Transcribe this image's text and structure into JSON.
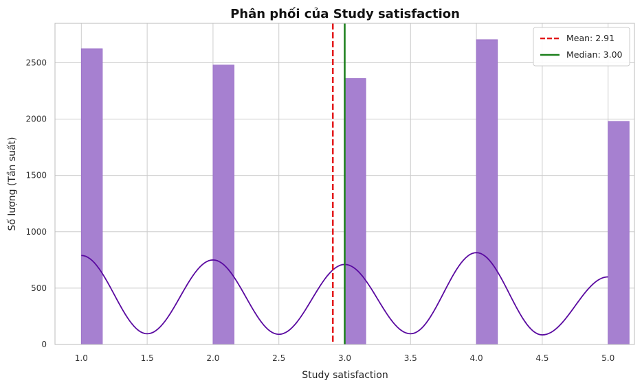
{
  "chart_data": {
    "type": "bar",
    "title": "Phân phối của Study satisfaction",
    "xlabel": "Study satisfaction",
    "ylabel": "Số lượng (Tần suất)",
    "xlim": [
      0.8,
      5.2
    ],
    "ylim": [
      0,
      2850
    ],
    "xticks": [
      1.0,
      1.5,
      2.0,
      2.5,
      3.0,
      3.5,
      4.0,
      4.5,
      5.0
    ],
    "xtick_labels": [
      "1.0",
      "1.5",
      "2.0",
      "2.5",
      "3.0",
      "3.5",
      "4.0",
      "4.5",
      "5.0"
    ],
    "yticks": [
      0,
      500,
      1000,
      1500,
      2000,
      2500
    ],
    "ytick_labels": [
      "0",
      "500",
      "1000",
      "1500",
      "2000",
      "2500"
    ],
    "bar_width": 0.16,
    "bars": [
      {
        "x": 1.0,
        "value": 2625
      },
      {
        "x": 2.0,
        "value": 2480
      },
      {
        "x": 3.0,
        "value": 2360
      },
      {
        "x": 4.0,
        "value": 2705
      },
      {
        "x": 5.0,
        "value": 1980
      }
    ],
    "kde": {
      "x": [
        1.0,
        1.5,
        2.0,
        2.5,
        3.0,
        3.5,
        4.0,
        4.5,
        5.0
      ],
      "y": [
        790,
        95,
        750,
        90,
        710,
        95,
        815,
        85,
        600
      ]
    },
    "mean": 2.91,
    "median": 3.0,
    "legend": [
      "Mean: 2.91",
      "Median: 3.00"
    ],
    "legend_position": "top-right",
    "grid": true,
    "colors": {
      "bar_fill": "#a680d0",
      "bar_stroke": "#9a70c8",
      "kde": "#5a0aa0",
      "mean": "#e31a1c",
      "median": "#1a7f1a",
      "grid": "#cccccc",
      "frame": "#bbbbbb"
    }
  }
}
